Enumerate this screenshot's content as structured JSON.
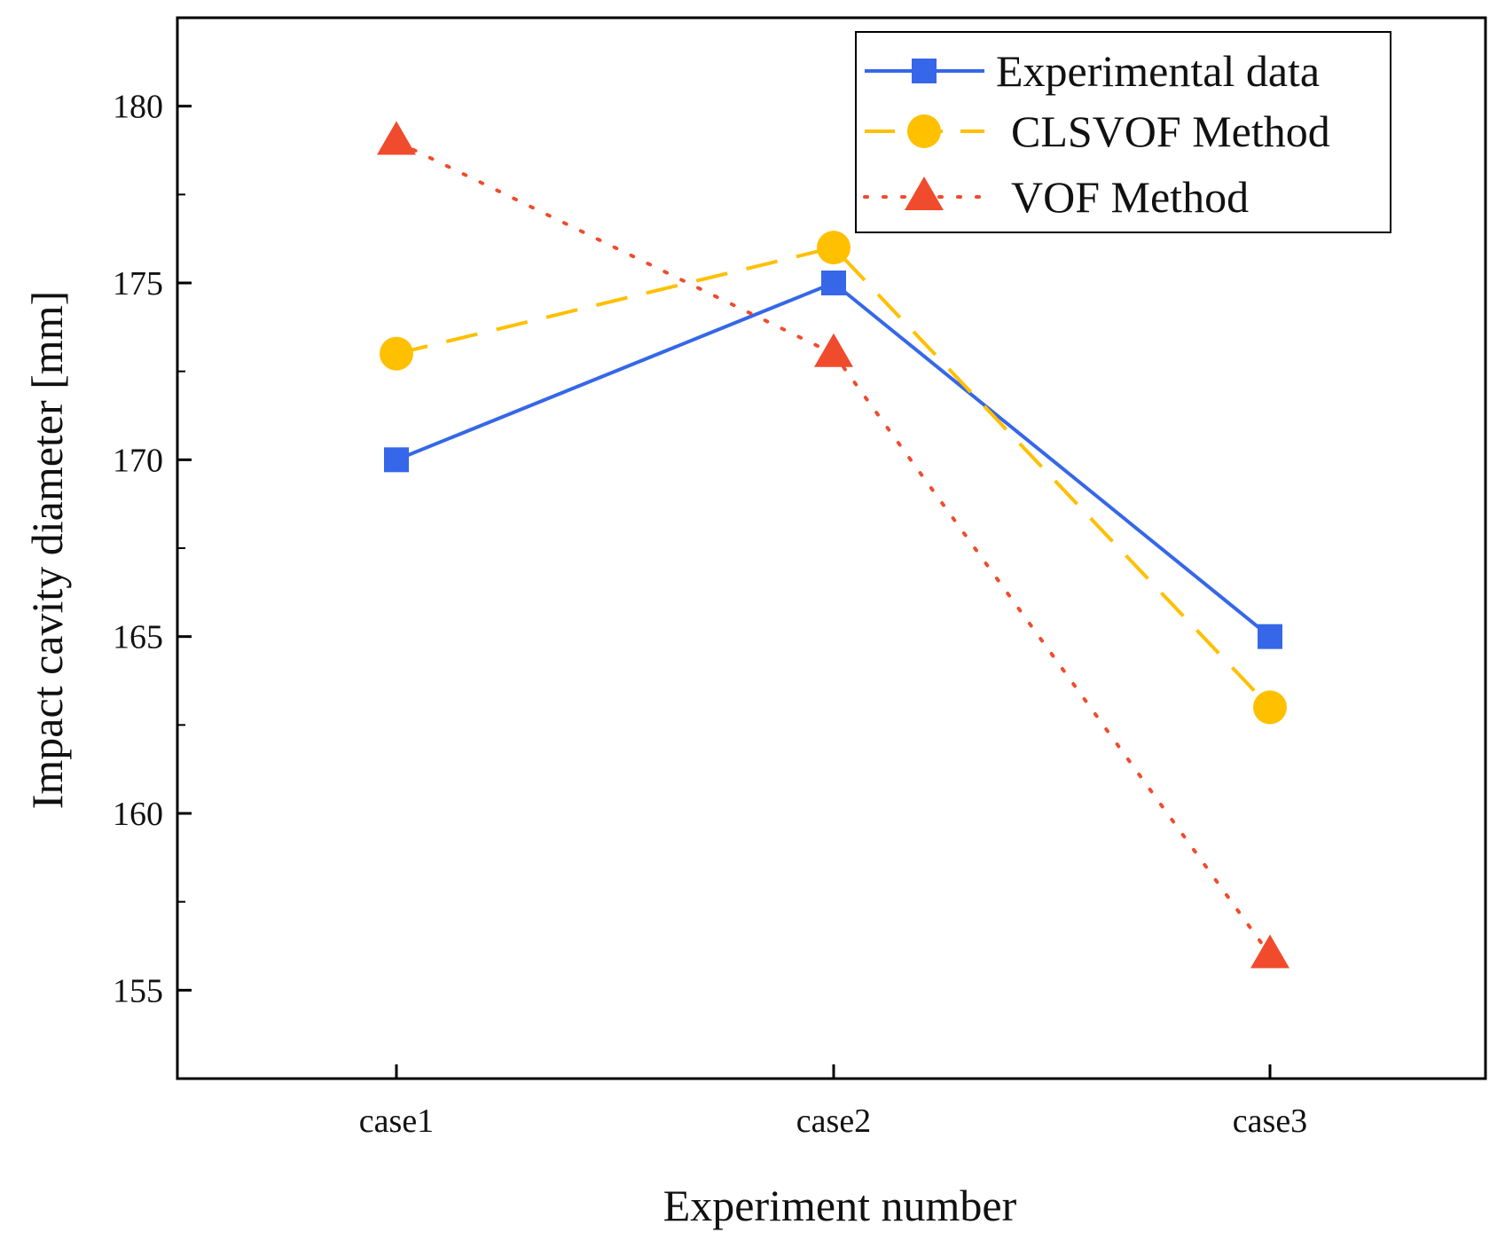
{
  "chart_data": {
    "type": "line",
    "title": "",
    "xlabel": "Experiment number",
    "ylabel": "Impact cavity diameter [mm]",
    "categories": [
      "case1",
      "case2",
      "case3"
    ],
    "ylim": [
      152.5,
      182.5
    ],
    "yticks": [
      155,
      160,
      165,
      170,
      175,
      180
    ],
    "ytick_labels": [
      "155",
      "160",
      "165",
      "170",
      "175",
      "180"
    ],
    "grid": false,
    "legend_position": "top-right",
    "series": [
      {
        "name": "Experimental data",
        "values": [
          170,
          175,
          165
        ],
        "color": "#3567e8",
        "marker": "square",
        "line_style": "solid"
      },
      {
        "name": "CLSVOF Method",
        "values": [
          173,
          176,
          163
        ],
        "color": "#ffc000",
        "marker": "circle",
        "line_style": "dashed"
      },
      {
        "name": "VOF Method",
        "values": [
          179,
          173,
          156
        ],
        "color": "#f04b2d",
        "marker": "triangle",
        "line_style": "dotted"
      }
    ]
  }
}
